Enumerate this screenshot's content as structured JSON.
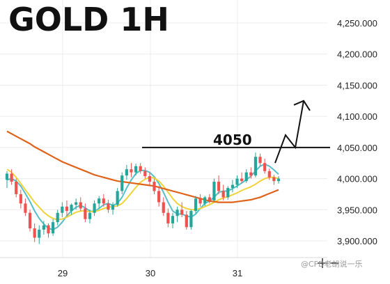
{
  "chart_data": {
    "type": "candlestick",
    "title": "GOLD 1H",
    "x_ticks": [
      "29",
      "30",
      "31"
    ],
    "y_ticks": [
      "4,250.000",
      "4,200.000",
      "4,150.000",
      "4,100.000",
      "4,050.000",
      "4,000.000",
      "3,950.000",
      "3,900.000"
    ],
    "y_tick_values": [
      4250,
      4200,
      4150,
      4100,
      4050,
      4000,
      3950,
      3900
    ],
    "ylim": [
      3880,
      4270
    ],
    "grid": true,
    "level": {
      "value": 4050,
      "label": "4050"
    },
    "projection": [
      [
        3990,
        4025
      ],
      [
        4008,
        4070
      ],
      [
        4046,
        4050
      ],
      [
        4060,
        4125
      ]
    ],
    "candles": [
      [
        3998,
        4012,
        3985,
        4008
      ],
      [
        4008,
        4015,
        3990,
        3995
      ],
      [
        3995,
        4000,
        3970,
        3975
      ],
      [
        3975,
        3982,
        3952,
        3960
      ],
      [
        3960,
        3968,
        3940,
        3945
      ],
      [
        3945,
        3950,
        3915,
        3920
      ],
      [
        3920,
        3928,
        3898,
        3905
      ],
      [
        3905,
        3925,
        3895,
        3918
      ],
      [
        3918,
        3932,
        3910,
        3925
      ],
      [
        3925,
        3928,
        3905,
        3912
      ],
      [
        3912,
        3935,
        3908,
        3930
      ],
      [
        3930,
        3950,
        3925,
        3945
      ],
      [
        3945,
        3962,
        3938,
        3955
      ],
      [
        3955,
        3965,
        3940,
        3948
      ],
      [
        3948,
        3960,
        3942,
        3958
      ],
      [
        3958,
        3968,
        3950,
        3962
      ],
      [
        3962,
        3970,
        3948,
        3952
      ],
      [
        3952,
        3960,
        3930,
        3935
      ],
      [
        3935,
        3950,
        3928,
        3945
      ],
      [
        3945,
        3965,
        3940,
        3960
      ],
      [
        3960,
        3972,
        3952,
        3968
      ],
      [
        3968,
        3975,
        3955,
        3960
      ],
      [
        3960,
        3966,
        3945,
        3950
      ],
      [
        3950,
        3962,
        3942,
        3958
      ],
      [
        3958,
        3985,
        3955,
        3980
      ],
      [
        3980,
        4010,
        3975,
        4005
      ],
      [
        4005,
        4022,
        3998,
        4015
      ],
      [
        4015,
        4025,
        4002,
        4010
      ],
      [
        4010,
        4024,
        4005,
        4020
      ],
      [
        4020,
        4025,
        4008,
        4012
      ],
      [
        4012,
        4018,
        4000,
        4004
      ],
      [
        4004,
        4010,
        3990,
        3995
      ],
      [
        3995,
        4000,
        3975,
        3980
      ],
      [
        3980,
        3988,
        3955,
        3962
      ],
      [
        3962,
        3970,
        3940,
        3945
      ],
      [
        3945,
        3952,
        3922,
        3928
      ],
      [
        3928,
        3945,
        3920,
        3940
      ],
      [
        3940,
        3955,
        3930,
        3950
      ],
      [
        3950,
        3962,
        3938,
        3942
      ],
      [
        3942,
        3948,
        3918,
        3922
      ],
      [
        3922,
        3950,
        3918,
        3948
      ],
      [
        3948,
        3972,
        3944,
        3968
      ],
      [
        3968,
        3975,
        3955,
        3960
      ],
      [
        3960,
        3972,
        3956,
        3970
      ],
      [
        3970,
        3975,
        3960,
        3965
      ],
      [
        3965,
        4000,
        3962,
        3995
      ],
      [
        3995,
        4005,
        3975,
        3980
      ],
      [
        3980,
        3990,
        3965,
        3970
      ],
      [
        3970,
        3988,
        3966,
        3985
      ],
      [
        3985,
        3998,
        3978,
        3990
      ],
      [
        3990,
        4005,
        3985,
        4000
      ],
      [
        4000,
        4010,
        3992,
        3996
      ],
      [
        3996,
        4015,
        3993,
        4010
      ],
      [
        4010,
        4018,
        4000,
        4005
      ],
      [
        4005,
        4042,
        4002,
        4035
      ],
      [
        4035,
        4040,
        4020,
        4025
      ],
      [
        4025,
        4032,
        4008,
        4012
      ],
      [
        4012,
        4016,
        3998,
        4002
      ],
      [
        4002,
        4006,
        3990,
        3996
      ],
      [
        3996,
        4004,
        3992,
        4000
      ]
    ],
    "series": [
      {
        "values": [
          3998,
          4000,
          3996,
          3988,
          3976,
          3963,
          3948,
          3936,
          3927,
          3920,
          3918,
          3922,
          3930,
          3940,
          3948,
          3954,
          3957,
          3953,
          3948,
          3947,
          3952,
          3958,
          3960,
          3957,
          3960,
          3970,
          3985,
          3998,
          4008,
          4013,
          4013,
          4010,
          4003,
          3992,
          3978,
          3962,
          3948,
          3943,
          3943,
          3940,
          3938,
          3943,
          3952,
          3960,
          3964,
          3970,
          3978,
          3980,
          3980,
          3984,
          3988,
          3993,
          3998,
          4004,
          4012,
          4020,
          4023,
          4020,
          4014,
          4007
        ],
        "color": "#55bfc8"
      },
      {
        "values": [
          4015,
          4010,
          4002,
          3992,
          3982,
          3972,
          3962,
          3954,
          3946,
          3940,
          3936,
          3934,
          3935,
          3938,
          3942,
          3946,
          3948,
          3948,
          3947,
          3947,
          3949,
          3952,
          3954,
          3955,
          3956,
          3960,
          3968,
          3977,
          3986,
          3994,
          3999,
          4002,
          4001,
          3996,
          3988,
          3978,
          3968,
          3960,
          3955,
          3952,
          3950,
          3950,
          3952,
          3955,
          3958,
          3962,
          3966,
          3969,
          3971,
          3974,
          3977,
          3981,
          3984,
          3987,
          3991,
          3996,
          4000,
          4002,
          4002,
          4000
        ],
        "color": "#f0d23a"
      },
      {
        "values": [
          4076,
          4072,
          4068,
          4064,
          4060,
          4056,
          4051,
          4047,
          4043,
          4039,
          4035,
          4031,
          4027,
          4024,
          4021,
          4018,
          4015,
          4012,
          4009,
          4006,
          4004,
          4002,
          4000,
          3998,
          3996,
          3995,
          3994,
          3993,
          3992,
          3991,
          3990,
          3989,
          3988,
          3986,
          3984,
          3982,
          3980,
          3978,
          3976,
          3974,
          3972,
          3970,
          3968,
          3966,
          3964,
          3963,
          3962,
          3962,
          3962,
          3962,
          3963,
          3964,
          3965,
          3966,
          3968,
          3970,
          3973,
          3976,
          3979,
          3982
        ],
        "color": "#e0621a"
      }
    ]
  },
  "watermark": "@CFD老胡说一乐"
}
